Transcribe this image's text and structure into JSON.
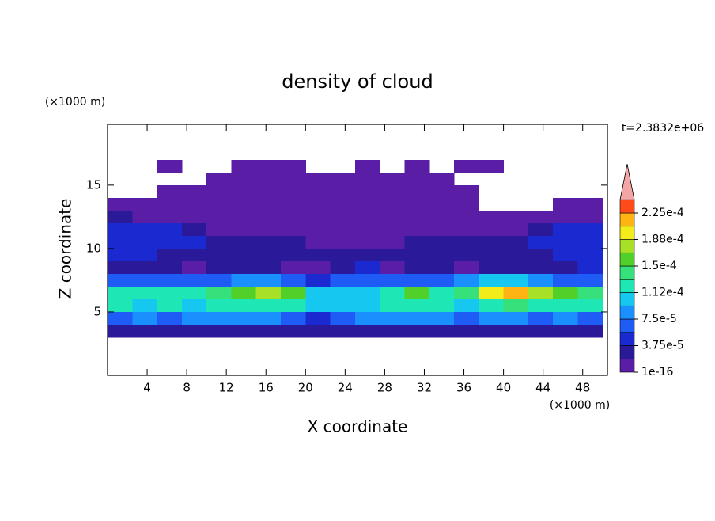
{
  "chart_data": {
    "type": "contour",
    "title": "density of cloud",
    "x_label": "X coordinate",
    "y_label": "Z coordinate",
    "x_unit": "(×1000 m)",
    "y_unit": "(×1000 m)",
    "annotation": "t=2.3832e+06",
    "xlim": [
      0,
      50.5
    ],
    "ylim": [
      0,
      19.8
    ],
    "xticks": [
      4,
      8,
      12,
      16,
      20,
      24,
      28,
      32,
      36,
      40,
      44,
      48
    ],
    "yticks": [
      5,
      10,
      15
    ],
    "x": [
      1.25,
      3.75,
      6.25,
      8.75,
      11.25,
      13.75,
      16.25,
      18.75,
      21.25,
      23.75,
      26.25,
      28.75,
      31.25,
      33.75,
      36.25,
      38.75,
      41.25,
      43.75,
      46.25,
      48.75
    ],
    "y": [
      16.5,
      15.5,
      14.5,
      13.5,
      12.5,
      11.5,
      10.5,
      9.5,
      8.5,
      7.5,
      6.5,
      5.5,
      4.5,
      3.5
    ],
    "z": [
      [
        null,
        null,
        5e-06,
        null,
        null,
        5e-06,
        5e-06,
        5e-06,
        null,
        null,
        5e-06,
        null,
        5e-06,
        null,
        5e-06,
        5e-06,
        null,
        null,
        null,
        null
      ],
      [
        null,
        null,
        null,
        null,
        5e-06,
        5e-06,
        5e-06,
        5e-06,
        5e-06,
        5e-06,
        5e-06,
        5e-06,
        5e-06,
        5e-06,
        null,
        null,
        null,
        null,
        null,
        null
      ],
      [
        null,
        null,
        5e-06,
        5e-06,
        5e-06,
        5e-06,
        5e-06,
        5e-06,
        5e-06,
        5e-06,
        5e-06,
        5e-06,
        5e-06,
        5e-06,
        5e-06,
        null,
        null,
        null,
        null,
        null
      ],
      [
        5e-06,
        5e-06,
        5e-06,
        5e-06,
        5e-06,
        5e-06,
        5e-06,
        5e-06,
        5e-06,
        5e-06,
        5e-06,
        5e-06,
        5e-06,
        5e-06,
        5e-06,
        null,
        null,
        null,
        5e-06,
        5e-06
      ],
      [
        2.5e-05,
        5e-06,
        5e-06,
        5e-06,
        5e-06,
        5e-06,
        5e-06,
        5e-06,
        5e-06,
        5e-06,
        5e-06,
        5e-06,
        5e-06,
        5e-06,
        5e-06,
        5e-06,
        5e-06,
        5e-06,
        5e-06,
        5e-06
      ],
      [
        4e-05,
        4e-05,
        4e-05,
        2.5e-05,
        5e-06,
        5e-06,
        5e-06,
        5e-06,
        5e-06,
        5e-06,
        5e-06,
        5e-06,
        5e-06,
        5e-06,
        5e-06,
        5e-06,
        5e-06,
        2.5e-05,
        4e-05,
        4e-05
      ],
      [
        5e-05,
        5e-05,
        5e-05,
        4e-05,
        3e-05,
        3e-05,
        3e-05,
        2.5e-05,
        5e-06,
        5e-06,
        5e-06,
        5e-06,
        2.5e-05,
        3e-05,
        3e-05,
        3e-05,
        3e-05,
        4e-05,
        5e-05,
        5e-05
      ],
      [
        4e-05,
        4e-05,
        3e-05,
        3e-05,
        3e-05,
        3e-05,
        3e-05,
        3e-05,
        3e-05,
        3e-05,
        3e-05,
        3e-05,
        3e-05,
        3e-05,
        3e-05,
        3e-05,
        3e-05,
        3e-05,
        4e-05,
        4e-05
      ],
      [
        2.5e-05,
        2.5e-05,
        2.5e-05,
        5e-06,
        2.5e-05,
        2.5e-05,
        2.5e-05,
        5e-06,
        5e-06,
        2.5e-05,
        4e-05,
        5e-06,
        2.5e-05,
        2.5e-05,
        5e-06,
        2.5e-05,
        2.5e-05,
        2.5e-05,
        2.5e-05,
        4e-05
      ],
      [
        6e-05,
        6e-05,
        6e-05,
        6e-05,
        7e-05,
        9e-05,
        9e-05,
        7e-05,
        4e-05,
        6e-05,
        7e-05,
        6e-05,
        6e-05,
        7e-05,
        9e-05,
        0.0001,
        0.0001,
        9e-05,
        7e-05,
        6e-05
      ],
      [
        0.00013,
        0.00012,
        0.00013,
        0.00012,
        0.00014,
        0.00016,
        0.00017,
        0.00015,
        0.0001,
        0.00011,
        0.0001,
        0.00013,
        0.00015,
        0.00012,
        0.00014,
        0.00019,
        0.00021,
        0.00017,
        0.00015,
        0.00014
      ],
      [
        0.00012,
        0.00011,
        0.00012,
        0.00011,
        0.00012,
        0.00013,
        0.00013,
        0.00012,
        0.0001,
        0.00011,
        0.00011,
        0.00012,
        0.00013,
        0.00012,
        0.00011,
        0.00013,
        0.00014,
        0.00013,
        0.00012,
        0.00012
      ],
      [
        7e-05,
        8e-05,
        7e-05,
        8e-05,
        9e-05,
        8e-05,
        8e-05,
        7e-05,
        5e-05,
        7e-05,
        8e-05,
        8e-05,
        9e-05,
        8e-05,
        6e-05,
        8e-05,
        8e-05,
        7e-05,
        8e-05,
        7e-05
      ],
      [
        2e-05,
        2e-05,
        3e-05,
        2e-05,
        2e-05,
        2e-05,
        2e-05,
        2e-05,
        3e-05,
        2e-05,
        2e-05,
        2e-05,
        2e-05,
        2e-05,
        2e-05,
        2e-05,
        2e-05,
        2e-05,
        2e-05,
        2e-05
      ]
    ],
    "colorbar": {
      "levels": [
        1e-16,
        1.875e-05,
        3.75e-05,
        5.625e-05,
        7.5e-05,
        9.375e-05,
        0.0001125,
        0.00013125,
        0.00015,
        0.00016875,
        0.0001875,
        0.00020625,
        0.000225
      ],
      "colors": [
        "#5a1ea6",
        "#2a1a9a",
        "#1b2ad0",
        "#1f5cf5",
        "#1a90ff",
        "#16c8f0",
        "#1ee6b4",
        "#36e07a",
        "#50d028",
        "#a8e028",
        "#f2ec1a",
        "#ffb414",
        "#ff4a1a"
      ],
      "extend_color": "#f4a6a6",
      "ticks": [
        {
          "value": 1e-16,
          "label": "1e-16"
        },
        {
          "value": 3.75e-05,
          "label": "3.75e-5"
        },
        {
          "value": 7.5e-05,
          "label": "7.5e-5"
        },
        {
          "value": 0.0001125,
          "label": "1.12e-4"
        },
        {
          "value": 0.00015,
          "label": "1.5e-4"
        },
        {
          "value": 0.0001875,
          "label": "1.88e-4"
        },
        {
          "value": 0.000225,
          "label": "2.25e-4"
        }
      ]
    }
  }
}
